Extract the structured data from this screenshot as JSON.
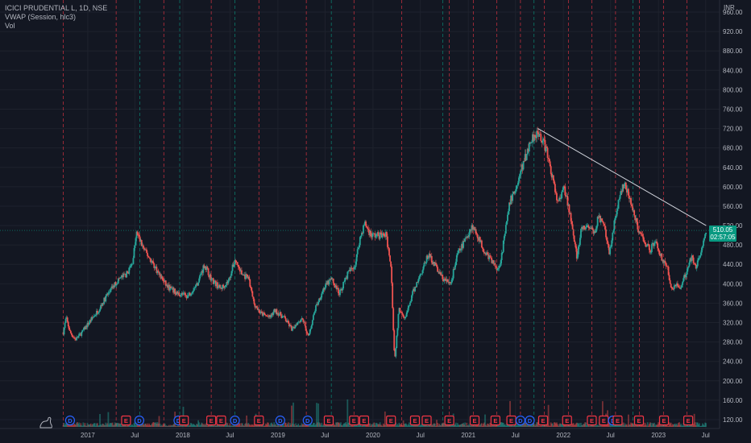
{
  "header": {
    "symbol_line": "ICICI PRUDENTIAL L, 1D, NSE",
    "indicator_vwap": "VWAP (Session, hlc3)",
    "indicator_vol": "Vol",
    "currency": "INR"
  },
  "price_tag": {
    "price": "510.05",
    "countdown": "02:57:05"
  },
  "colors": {
    "background": "#131722",
    "up": "#26a69a",
    "down": "#ef5350",
    "price_tag": "#089981",
    "trendline": "#d1d4dc",
    "earnings_line": "#f23645",
    "dividend_line": "#089981",
    "event_D": "#2962ff",
    "event_E": "#f23645"
  },
  "chart_data": {
    "type": "candlestick",
    "title": "ICICI PRUDENTIAL L, 1D, NSE",
    "y_axis": {
      "ticks": [
        120,
        160,
        200,
        240,
        280,
        320,
        360,
        400,
        440,
        480,
        520,
        560,
        600,
        640,
        680,
        720,
        760,
        800,
        840,
        880,
        920,
        960
      ],
      "tick_labels": [
        "120.00",
        "160.00",
        "200.00",
        "240.00",
        "280.00",
        "320.00",
        "360.00",
        "400.00",
        "440.00",
        "480.00",
        "520.00",
        "560.00",
        "600.00",
        "640.00",
        "680.00",
        "720.00",
        "760.00",
        "800.00",
        "840.00",
        "880.00",
        "920.00",
        "960.00"
      ],
      "range": [
        105,
        975
      ],
      "unit": "INR"
    },
    "x_axis": {
      "range": [
        "2016-09-15",
        "2023-07-08"
      ],
      "tick_labels": [
        {
          "date": "2017-01-01",
          "label": "2017"
        },
        {
          "date": "2017-07-01",
          "label": "Jul"
        },
        {
          "date": "2018-01-01",
          "label": "2018"
        },
        {
          "date": "2018-07-01",
          "label": "Jul"
        },
        {
          "date": "2019-01-01",
          "label": "2019"
        },
        {
          "date": "2019-07-01",
          "label": "Jul"
        },
        {
          "date": "2020-01-01",
          "label": "2020"
        },
        {
          "date": "2020-07-01",
          "label": "Jul"
        },
        {
          "date": "2021-01-01",
          "label": "2021"
        },
        {
          "date": "2021-07-01",
          "label": "Jul"
        },
        {
          "date": "2022-01-01",
          "label": "2022"
        },
        {
          "date": "2022-07-01",
          "label": "Jul"
        },
        {
          "date": "2023-01-01",
          "label": "2023"
        },
        {
          "date": "2023-07-01",
          "label": "Jul"
        }
      ]
    },
    "price_path": [
      [
        "2016-09-29",
        300
      ],
      [
        "2016-10-10",
        330
      ],
      [
        "2016-10-25",
        300
      ],
      [
        "2016-11-15",
        285
      ],
      [
        "2016-12-10",
        300
      ],
      [
        "2017-01-05",
        320
      ],
      [
        "2017-02-10",
        345
      ],
      [
        "2017-03-20",
        380
      ],
      [
        "2017-05-01",
        410
      ],
      [
        "2017-05-30",
        420
      ],
      [
        "2017-06-20",
        440
      ],
      [
        "2017-07-08",
        505
      ],
      [
        "2017-08-05",
        470
      ],
      [
        "2017-09-05",
        445
      ],
      [
        "2017-10-01",
        420
      ],
      [
        "2017-11-01",
        395
      ],
      [
        "2017-12-10",
        380
      ],
      [
        "2018-01-20",
        375
      ],
      [
        "2018-02-25",
        400
      ],
      [
        "2018-03-25",
        440
      ],
      [
        "2018-04-20",
        410
      ],
      [
        "2018-05-25",
        390
      ],
      [
        "2018-06-25",
        405
      ],
      [
        "2018-07-20",
        450
      ],
      [
        "2018-08-15",
        420
      ],
      [
        "2018-09-10",
        410
      ],
      [
        "2018-10-01",
        360
      ],
      [
        "2018-10-25",
        340
      ],
      [
        "2018-12-01",
        330
      ],
      [
        "2018-12-20",
        345
      ],
      [
        "2019-01-25",
        330
      ],
      [
        "2019-02-25",
        305
      ],
      [
        "2019-03-15",
        320
      ],
      [
        "2019-04-05",
        330
      ],
      [
        "2019-04-28",
        290
      ],
      [
        "2019-05-25",
        350
      ],
      [
        "2019-06-25",
        390
      ],
      [
        "2019-07-25",
        410
      ],
      [
        "2019-08-25",
        380
      ],
      [
        "2019-09-25",
        420
      ],
      [
        "2019-10-25",
        440
      ],
      [
        "2019-11-10",
        490
      ],
      [
        "2019-11-30",
        525
      ],
      [
        "2019-12-25",
        500
      ],
      [
        "2020-01-20",
        500
      ],
      [
        "2020-02-20",
        500
      ],
      [
        "2020-03-10",
        440
      ],
      [
        "2020-03-24",
        240
      ],
      [
        "2020-04-10",
        350
      ],
      [
        "2020-05-05",
        330
      ],
      [
        "2020-06-01",
        380
      ],
      [
        "2020-07-01",
        420
      ],
      [
        "2020-08-01",
        460
      ],
      [
        "2020-08-25",
        440
      ],
      [
        "2020-09-25",
        410
      ],
      [
        "2020-10-25",
        400
      ],
      [
        "2020-11-20",
        460
      ],
      [
        "2020-12-20",
        490
      ],
      [
        "2021-01-15",
        520
      ],
      [
        "2021-02-05",
        500
      ],
      [
        "2021-03-01",
        470
      ],
      [
        "2021-04-10",
        440
      ],
      [
        "2021-04-28",
        430
      ],
      [
        "2021-05-15",
        480
      ],
      [
        "2021-06-10",
        570
      ],
      [
        "2021-07-05",
        600
      ],
      [
        "2021-08-01",
        650
      ],
      [
        "2021-09-01",
        700
      ],
      [
        "2021-09-25",
        715
      ],
      [
        "2021-10-25",
        680
      ],
      [
        "2021-11-20",
        620
      ],
      [
        "2021-12-05",
        575
      ],
      [
        "2021-12-20",
        570
      ],
      [
        "2022-01-01",
        600
      ],
      [
        "2022-01-20",
        560
      ],
      [
        "2022-02-05",
        520
      ],
      [
        "2022-02-22",
        450
      ],
      [
        "2022-03-10",
        510
      ],
      [
        "2022-04-10",
        520
      ],
      [
        "2022-04-28",
        500
      ],
      [
        "2022-05-15",
        540
      ],
      [
        "2022-06-10",
        510
      ],
      [
        "2022-06-25",
        460
      ],
      [
        "2022-07-20",
        540
      ],
      [
        "2022-08-10",
        590
      ],
      [
        "2022-08-25",
        605
      ],
      [
        "2022-09-20",
        560
      ],
      [
        "2022-10-10",
        520
      ],
      [
        "2022-11-05",
        490
      ],
      [
        "2022-12-01",
        470
      ],
      [
        "2022-12-20",
        490
      ],
      [
        "2023-01-15",
        450
      ],
      [
        "2023-02-05",
        430
      ],
      [
        "2023-02-20",
        390
      ],
      [
        "2023-03-10",
        400
      ],
      [
        "2023-03-28",
        390
      ],
      [
        "2023-04-20",
        430
      ],
      [
        "2023-05-10",
        460
      ],
      [
        "2023-05-25",
        430
      ],
      [
        "2023-06-10",
        460
      ],
      [
        "2023-06-22",
        490
      ],
      [
        "2023-07-03",
        510
      ]
    ],
    "trendline": {
      "from": [
        "2021-09-25",
        720
      ],
      "to": [
        "2023-07-03",
        520
      ]
    },
    "last_price": 510.05,
    "events": [
      {
        "date": "2016-10-25",
        "type": "D"
      },
      {
        "date": "2017-05-28",
        "type": "E"
      },
      {
        "date": "2017-07-18",
        "type": "D"
      },
      {
        "date": "2017-12-15",
        "type": "D"
      },
      {
        "date": "2018-01-05",
        "type": "E"
      },
      {
        "date": "2018-04-20",
        "type": "E"
      },
      {
        "date": "2018-05-28",
        "type": "E"
      },
      {
        "date": "2018-07-20",
        "type": "D"
      },
      {
        "date": "2018-10-20",
        "type": "E"
      },
      {
        "date": "2019-01-10",
        "type": "D"
      },
      {
        "date": "2019-04-25",
        "type": "D"
      },
      {
        "date": "2019-07-15",
        "type": "E"
      },
      {
        "date": "2019-10-20",
        "type": "E"
      },
      {
        "date": "2019-11-28",
        "type": "E"
      },
      {
        "date": "2020-03-10",
        "type": "E"
      },
      {
        "date": "2020-06-10",
        "type": "E"
      },
      {
        "date": "2020-07-25",
        "type": "E"
      },
      {
        "date": "2020-10-20",
        "type": "E"
      },
      {
        "date": "2021-01-25",
        "type": "E"
      },
      {
        "date": "2021-04-15",
        "type": "E"
      },
      {
        "date": "2021-06-15",
        "type": "E"
      },
      {
        "date": "2021-07-20",
        "type": "D"
      },
      {
        "date": "2021-08-25",
        "type": "D"
      },
      {
        "date": "2021-10-15",
        "type": "E"
      },
      {
        "date": "2022-01-15",
        "type": "E"
      },
      {
        "date": "2022-04-20",
        "type": "E"
      },
      {
        "date": "2022-06-05",
        "type": "E"
      },
      {
        "date": "2022-07-10",
        "type": "D"
      },
      {
        "date": "2022-07-28",
        "type": "E"
      },
      {
        "date": "2022-10-18",
        "type": "E"
      },
      {
        "date": "2023-01-22",
        "type": "E"
      },
      {
        "date": "2023-04-25",
        "type": "E"
      }
    ],
    "earnings_lines": [
      "2016-09-29",
      "2017-04-20",
      "2017-10-20",
      "2018-04-20",
      "2018-10-20",
      "2019-04-20",
      "2019-10-20",
      "2020-04-20",
      "2020-10-20",
      "2021-01-20",
      "2021-04-20",
      "2021-07-20",
      "2021-10-20",
      "2022-01-20",
      "2022-04-20",
      "2022-07-20",
      "2022-10-20",
      "2023-01-20",
      "2023-04-20"
    ],
    "dividend_lines": [
      "2017-07-20",
      "2017-12-20",
      "2018-07-20",
      "2019-07-25",
      "2020-09-25",
      "2021-09-10",
      "2022-09-25"
    ],
    "grid": true,
    "legend": "top-left"
  }
}
